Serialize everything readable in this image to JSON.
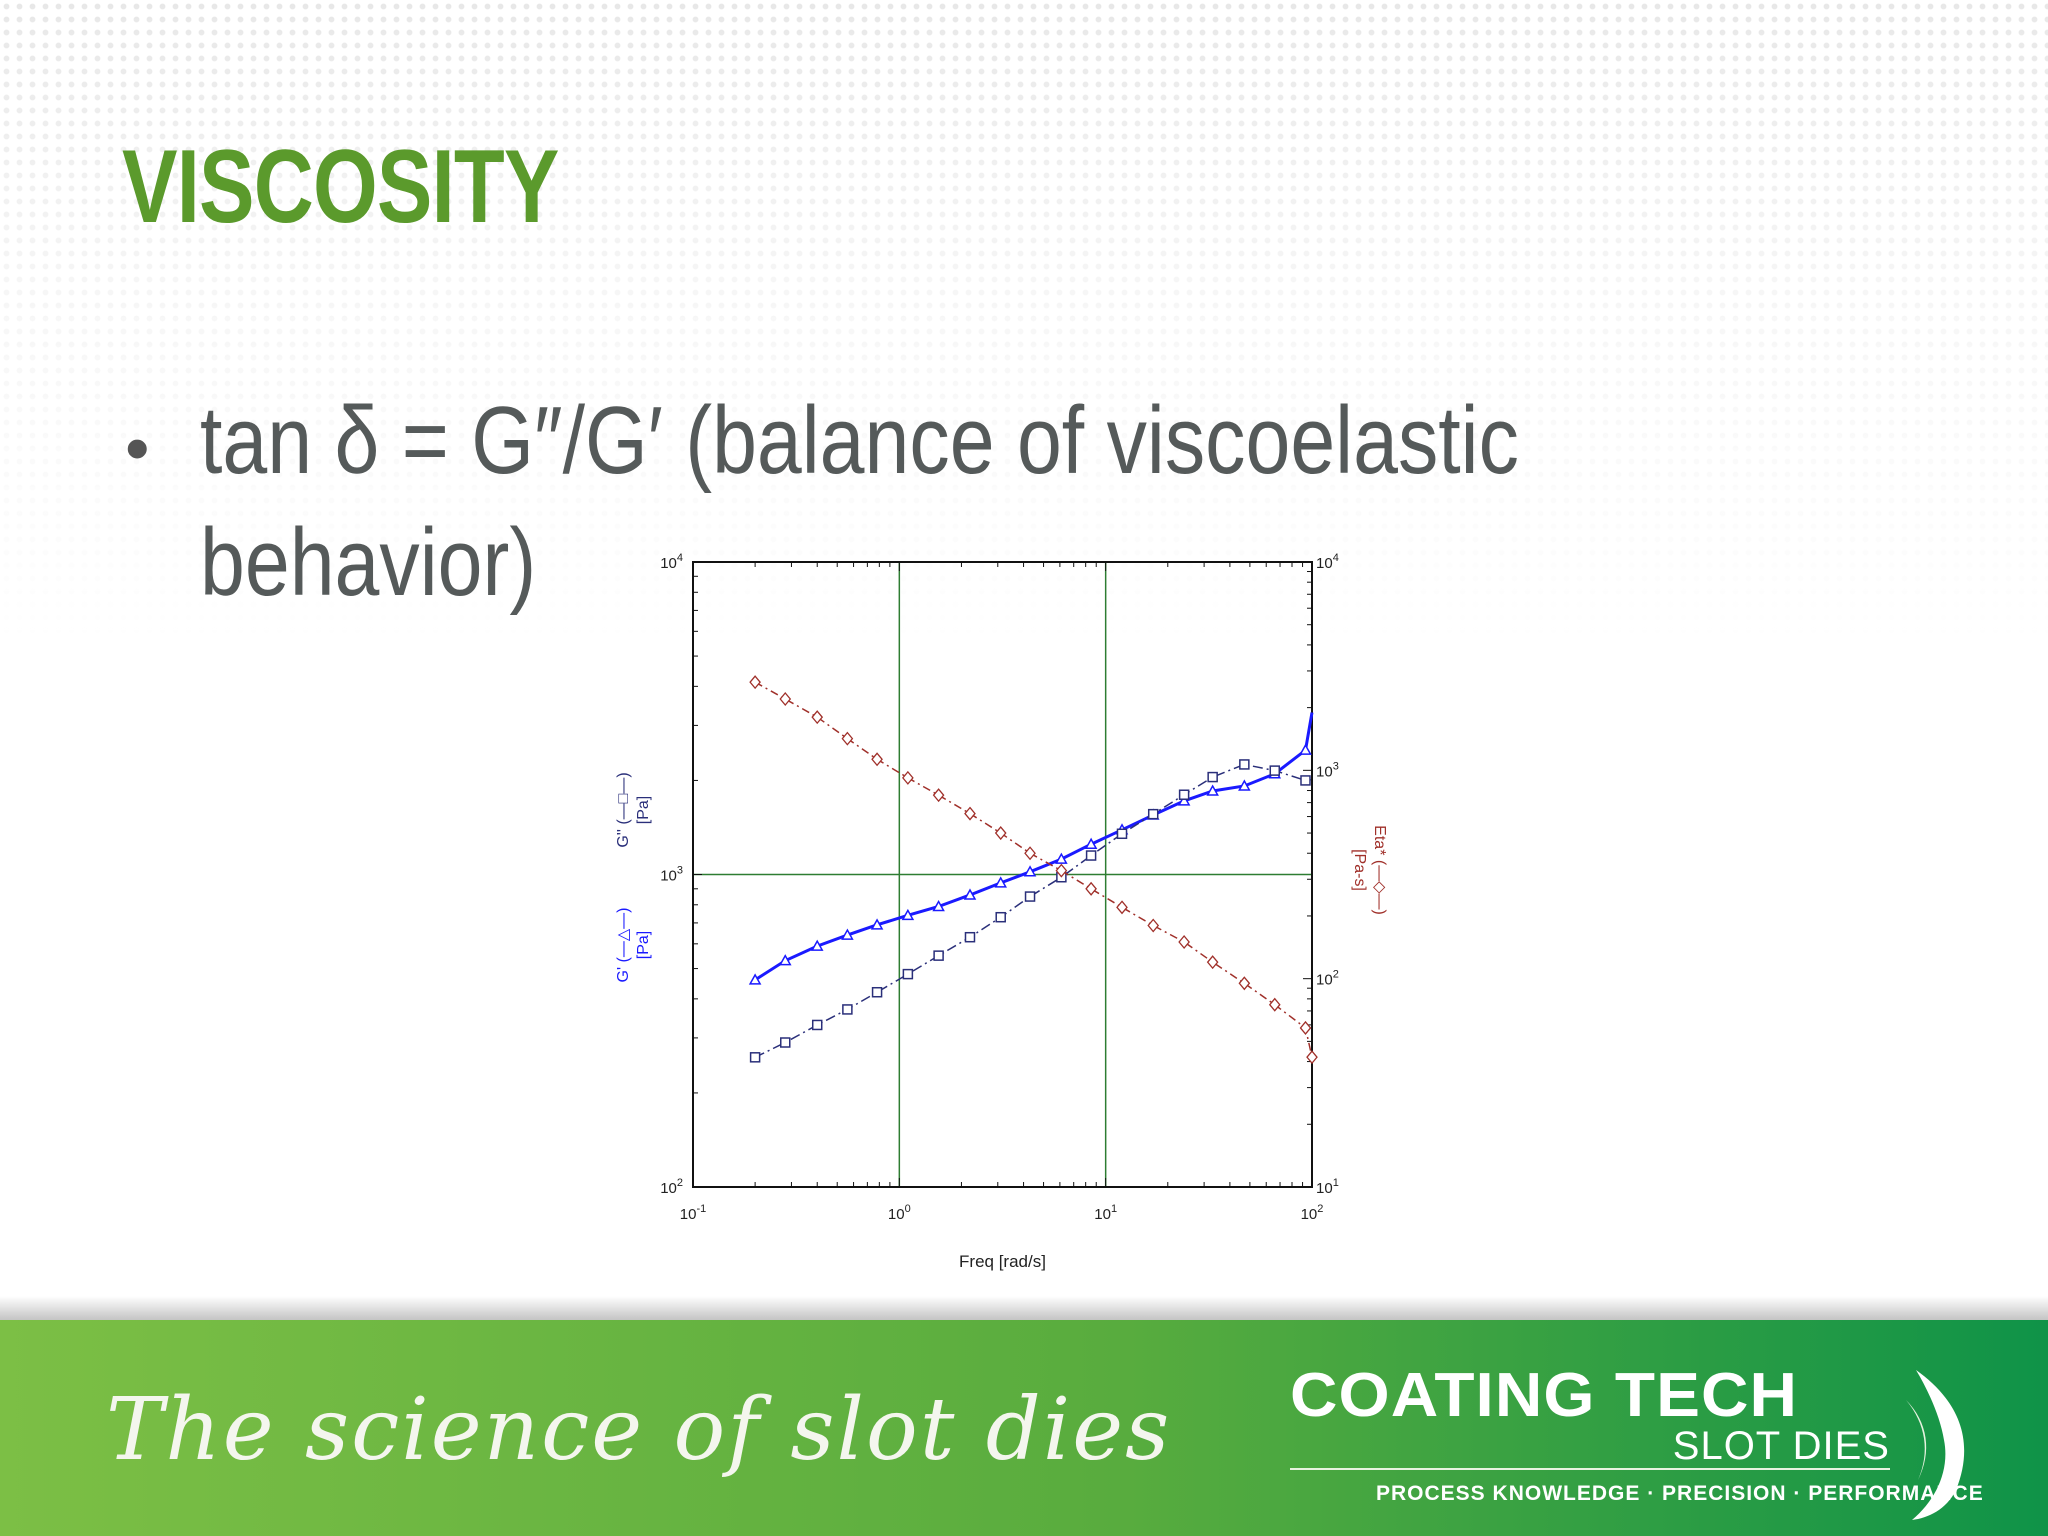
{
  "slide": {
    "title": "VISCOSITY",
    "bullet": "tan δ = G″/G′ (balance of viscoelastic behavior)"
  },
  "footer": {
    "tagline": "The science of slot dies",
    "logo_name": "COATING TECH",
    "logo_sub": "SLOT DIES",
    "logo_tagline": "PROCESS KNOWLEDGE · PRECISION · PERFORMANCE"
  },
  "colors": {
    "title": "#5b9a2c",
    "gprime": "#1a1aff",
    "gdoubleprime": "#2a2f7a",
    "eta": "#a0302a",
    "grid": "#2e7d32"
  },
  "chart_data": {
    "type": "line",
    "xscale": "log",
    "yscale": "log",
    "xlim": [
      0.1,
      100
    ],
    "ylim": [
      100,
      10000
    ],
    "y2lim": [
      10,
      10000
    ],
    "xlabel": "Freq [rad/s]",
    "ylabel_left": [
      "G' (—△—)",
      "[Pa]",
      "G'' (—□—)",
      "[Pa]"
    ],
    "ylabel_right": [
      "Eta* (—◇—)",
      "[Pa-s]"
    ],
    "xticks": [
      "10-1",
      "100",
      "101",
      "102"
    ],
    "yticks_left": [
      "102",
      "103",
      "104"
    ],
    "yticks_right": [
      "101",
      "102",
      "103",
      "104"
    ],
    "gridlines_x": [
      1,
      10
    ],
    "gridlines_y": [
      1000
    ],
    "series": [
      {
        "axis": "left",
        "marker": "triangle",
        "x": [
          0.2,
          0.28,
          0.4,
          0.56,
          0.78,
          1.1,
          1.55,
          2.2,
          3.1,
          4.3,
          6.1,
          8.5,
          12,
          17,
          24,
          33,
          47,
          66,
          93,
          100
        ],
        "y": [
          460,
          530,
          590,
          640,
          690,
          740,
          790,
          860,
          940,
          1020,
          1120,
          1250,
          1390,
          1550,
          1720,
          1850,
          1920,
          2100,
          2500,
          3300
        ]
      },
      {
        "axis": "left",
        "marker": "square",
        "x": [
          0.2,
          0.28,
          0.4,
          0.56,
          0.78,
          1.1,
          1.55,
          2.2,
          3.1,
          4.3,
          6.1,
          8.5,
          12,
          17,
          24,
          33,
          47,
          66,
          93
        ],
        "y": [
          260,
          290,
          330,
          370,
          420,
          480,
          550,
          630,
          730,
          850,
          980,
          1150,
          1350,
          1560,
          1800,
          2050,
          2250,
          2150,
          2000
        ]
      },
      {
        "axis": "right",
        "marker": "diamond",
        "x": [
          0.2,
          0.28,
          0.4,
          0.56,
          0.78,
          1.1,
          1.55,
          2.2,
          3.1,
          4.3,
          6.1,
          8.5,
          12,
          17,
          24,
          33,
          47,
          66,
          93,
          100
        ],
        "y": [
          2650,
          2200,
          1800,
          1420,
          1130,
          920,
          760,
          620,
          500,
          400,
          330,
          270,
          220,
          180,
          150,
          120,
          95,
          75,
          58,
          42
        ]
      }
    ]
  }
}
